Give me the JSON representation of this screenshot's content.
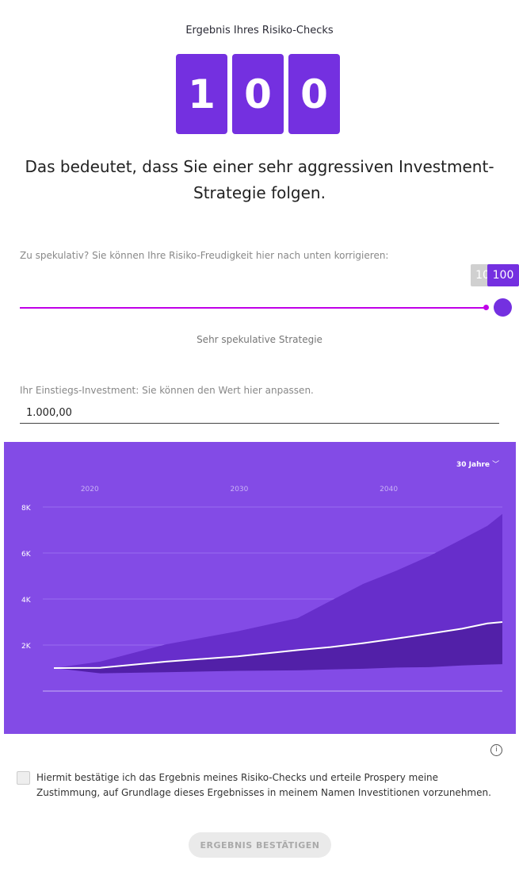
{
  "caption": "Ergebnis Ihres Risiko-Checks",
  "score_digits": [
    "1",
    "0",
    "0"
  ],
  "headline": "Das bedeutet, dass Sie einer sehr aggressiven Investment-Strategie folgen.",
  "slider": {
    "hint": "Zu spekulativ? Sie können Ihre Risiko-Freudigkeit hier nach unten korrigieren:",
    "previous_value_label": "10",
    "current_value_label": "100",
    "value": 100,
    "min": 0,
    "max": 100,
    "strategy_label": "Sehr spekulative Strategie"
  },
  "investment": {
    "hint": "Ihr Einstiegs-Investment: Sie können den Wert hier anpassen.",
    "value": "1.000,00"
  },
  "chart_data": {
    "type": "area",
    "period_selector": "30 Jahre",
    "x_tick_labels": [
      "2020",
      "2030",
      "2040"
    ],
    "x_ticks": [
      2020,
      2030,
      2040
    ],
    "y_tick_labels": [
      "2K",
      "4K",
      "6K",
      "8K"
    ],
    "y_ticks": [
      2000,
      4000,
      6000,
      8000
    ],
    "xlim": [
      2017.6,
      2047.6
    ],
    "ylim": [
      0,
      8000
    ],
    "grid": true,
    "x": [
      2017.6,
      2020.7,
      2025.1,
      2029.9,
      2033.9,
      2036.1,
      2038.3,
      2040.5,
      2042.7,
      2044.9,
      2046.6,
      2047.6
    ],
    "upper": [
      1000,
      1280,
      2030,
      2600,
      3170,
      3920,
      4660,
      5230,
      5860,
      6600,
      7180,
      7700
    ],
    "median": [
      1000,
      1010,
      1280,
      1510,
      1780,
      1910,
      2080,
      2280,
      2490,
      2710,
      2940,
      3000
    ],
    "lower": [
      1000,
      770,
      820,
      880,
      900,
      940,
      970,
      1020,
      1040,
      1110,
      1150,
      1170
    ],
    "colors": {
      "background": "#834be6",
      "upper_band": "#672ecb",
      "lower_band": "#5220a8",
      "median": "#ffffff"
    }
  },
  "consent": "Hiermit bestätige ich das Ergebnis meines Risiko-Checks und erteile Prospery meine Zustimmung, auf Grundlage dieses Ergebnisses in meinem Namen Investitionen vorzunehmen.",
  "confirm_button": "ERGEBNIS BESTÄTIGEN",
  "info_icon": "i"
}
